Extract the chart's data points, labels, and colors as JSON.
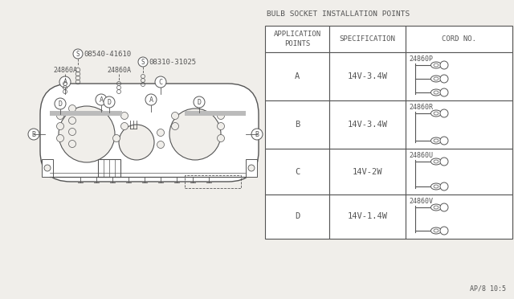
{
  "bg_color": "#f0eeea",
  "line_color": "#555555",
  "title_table": "BULB SOCKET INSTALLATION POINTS",
  "table_headers": [
    "APPLICATION\nPOINTS",
    "SPECIFICATION",
    "CORD NO."
  ],
  "table_rows": [
    [
      "A",
      "14V-3.4W",
      "24860P"
    ],
    [
      "B",
      "14V-3.4W",
      "24860R"
    ],
    [
      "C",
      "14V-2W",
      "24860U"
    ],
    [
      "D",
      "14V-1.4W",
      "24860V"
    ]
  ],
  "part_label_top": "08540-41610",
  "part_label_bottom1": "24860A",
  "part_label_bottom2": "24860A",
  "part_label_bottom3": "08310-31025",
  "page_ref": "AP/8 10:5",
  "font_size": 6.5,
  "font_family": "monospace"
}
